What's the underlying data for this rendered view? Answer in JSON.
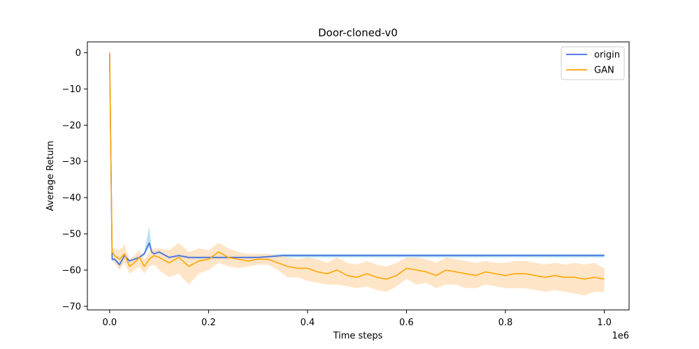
{
  "chart_data": {
    "type": "line",
    "title": "Door-cloned-v0",
    "xlabel": "Time steps",
    "ylabel": "Average Return",
    "x_offset_label": "1e6",
    "xlim": [
      -0.045,
      1.05
    ],
    "ylim": [
      -71,
      3
    ],
    "xticks": [
      0.0,
      0.2,
      0.4,
      0.6,
      0.8,
      1.0
    ],
    "xtick_labels": [
      "0.0",
      "0.2",
      "0.4",
      "0.6",
      "0.8",
      "1.0"
    ],
    "yticks": [
      0,
      -10,
      -20,
      -30,
      -40,
      -50,
      -60,
      -70
    ],
    "ytick_labels": [
      "0",
      "−10",
      "−20",
      "−30",
      "−40",
      "−50",
      "−60",
      "−70"
    ],
    "grid": false,
    "legend": "top-right",
    "series": [
      {
        "name": "origin",
        "color": "#4169e1",
        "band_color": "#87ceeb",
        "x": [
          0.0,
          0.005,
          0.01,
          0.02,
          0.03,
          0.04,
          0.05,
          0.06,
          0.07,
          0.08,
          0.085,
          0.09,
          0.1,
          0.12,
          0.14,
          0.16,
          0.2,
          0.25,
          0.3,
          0.35,
          0.4,
          0.45,
          0.5,
          0.55,
          0.6,
          0.65,
          0.7,
          0.75,
          0.8,
          0.85,
          0.9,
          0.95,
          1.0
        ],
        "y": [
          0.0,
          -57.0,
          -57.0,
          -58.5,
          -56.0,
          -57.5,
          -57.0,
          -56.5,
          -55.5,
          -52.5,
          -55.0,
          -55.5,
          -55.0,
          -56.5,
          -56.0,
          -56.5,
          -56.5,
          -56.5,
          -56.5,
          -56.0,
          -56.0,
          -56.0,
          -56.0,
          -56.0,
          -56.0,
          -56.0,
          -56.0,
          -56.0,
          -56.0,
          -56.0,
          -56.0,
          -56.0,
          -56.0
        ],
        "lower": [
          0.0,
          -57.5,
          -57.5,
          -59.5,
          -57.0,
          -58.0,
          -57.5,
          -57.0,
          -56.0,
          -53.5,
          -55.5,
          -56.0,
          -55.5,
          -57.0,
          -56.5,
          -57.0,
          -57.0,
          -57.0,
          -57.0,
          -56.5,
          -56.5,
          -56.5,
          -56.5,
          -56.5,
          -56.5,
          -56.5,
          -56.5,
          -56.5,
          -56.5,
          -56.5,
          -56.5,
          -56.5,
          -56.5
        ],
        "upper": [
          0.0,
          -56.5,
          -56.5,
          -57.5,
          -55.0,
          -57.0,
          -56.5,
          -56.0,
          -55.0,
          -48.0,
          -54.0,
          -55.0,
          -54.5,
          -56.0,
          -55.5,
          -56.0,
          -56.0,
          -56.0,
          -56.0,
          -55.5,
          -55.5,
          -55.5,
          -55.5,
          -55.5,
          -55.5,
          -55.5,
          -55.5,
          -55.5,
          -55.5,
          -55.5,
          -55.5,
          -55.5,
          -55.5
        ]
      },
      {
        "name": "GAN",
        "color": "#ffa500",
        "band_color": "#ffdab0",
        "x": [
          0.0,
          0.005,
          0.01,
          0.02,
          0.03,
          0.04,
          0.05,
          0.06,
          0.07,
          0.08,
          0.09,
          0.1,
          0.12,
          0.14,
          0.16,
          0.18,
          0.2,
          0.22,
          0.24,
          0.26,
          0.28,
          0.3,
          0.32,
          0.34,
          0.36,
          0.38,
          0.4,
          0.42,
          0.44,
          0.46,
          0.48,
          0.5,
          0.52,
          0.54,
          0.56,
          0.58,
          0.6,
          0.62,
          0.64,
          0.66,
          0.68,
          0.7,
          0.72,
          0.74,
          0.76,
          0.78,
          0.8,
          0.82,
          0.84,
          0.86,
          0.88,
          0.9,
          0.92,
          0.94,
          0.96,
          0.98,
          1.0
        ],
        "y": [
          0.0,
          -55.0,
          -56.0,
          -57.0,
          -55.5,
          -59.0,
          -58.0,
          -56.5,
          -59.0,
          -57.0,
          -56.0,
          -56.5,
          -58.0,
          -56.5,
          -59.0,
          -57.5,
          -57.0,
          -55.0,
          -56.5,
          -57.0,
          -57.5,
          -57.0,
          -57.0,
          -58.0,
          -59.0,
          -59.5,
          -59.5,
          -60.5,
          -61.0,
          -60.0,
          -61.5,
          -62.0,
          -61.0,
          -62.0,
          -62.5,
          -61.5,
          -59.5,
          -60.0,
          -60.5,
          -61.5,
          -60.0,
          -60.5,
          -61.0,
          -61.5,
          -60.5,
          -61.0,
          -61.5,
          -61.0,
          -61.0,
          -61.5,
          -62.0,
          -61.5,
          -62.0,
          -62.0,
          -62.5,
          -62.0,
          -62.5
        ],
        "lower": [
          0.0,
          -56.0,
          -58.0,
          -60.0,
          -58.0,
          -61.0,
          -60.0,
          -59.0,
          -61.0,
          -59.0,
          -58.5,
          -60.0,
          -62.0,
          -61.0,
          -64.0,
          -61.0,
          -60.0,
          -58.0,
          -59.0,
          -59.5,
          -59.0,
          -58.5,
          -58.5,
          -60.0,
          -62.0,
          -62.0,
          -63.0,
          -63.5,
          -64.0,
          -64.0,
          -64.5,
          -65.0,
          -64.5,
          -65.5,
          -66.0,
          -64.5,
          -62.5,
          -64.0,
          -63.5,
          -65.0,
          -64.0,
          -64.0,
          -65.0,
          -65.0,
          -64.0,
          -64.5,
          -65.0,
          -65.0,
          -65.0,
          -65.5,
          -66.0,
          -65.5,
          -66.0,
          -66.5,
          -67.0,
          -66.0,
          -66.0
        ],
        "upper": [
          0.0,
          -54.0,
          -54.0,
          -54.5,
          -53.0,
          -57.0,
          -56.0,
          -54.5,
          -57.0,
          -55.0,
          -54.0,
          -54.0,
          -54.5,
          -52.5,
          -55.0,
          -54.0,
          -54.5,
          -52.5,
          -54.0,
          -55.0,
          -55.5,
          -55.5,
          -55.5,
          -56.0,
          -56.5,
          -57.0,
          -56.5,
          -57.0,
          -58.0,
          -56.5,
          -58.0,
          -58.5,
          -57.5,
          -58.5,
          -59.0,
          -58.0,
          -56.5,
          -56.5,
          -57.0,
          -58.0,
          -56.5,
          -57.0,
          -57.5,
          -58.0,
          -57.5,
          -58.0,
          -58.0,
          -57.5,
          -57.5,
          -58.0,
          -58.5,
          -58.0,
          -58.5,
          -58.0,
          -58.5,
          -58.0,
          -59.5
        ]
      }
    ]
  }
}
